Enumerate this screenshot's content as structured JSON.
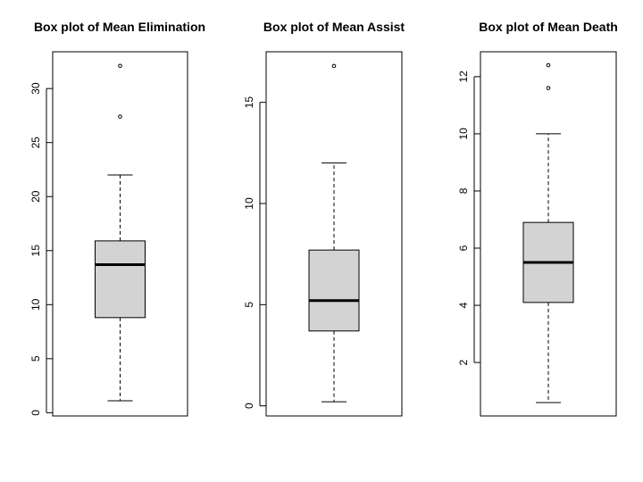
{
  "chart_data": [
    {
      "type": "box",
      "title": "Box plot of Mean Elimination",
      "xlabel": "",
      "ylabel": "",
      "ylim": [
        -0.3,
        33.4
      ],
      "yticks": [
        0,
        5,
        10,
        15,
        20,
        25,
        30
      ],
      "box": {
        "whisker_low": 1.1,
        "q1": 8.8,
        "median": 13.7,
        "q3": 15.9,
        "whisker_high": 22.0
      },
      "outliers": [
        27.4,
        32.1
      ],
      "box_color": "#d3d3d3"
    },
    {
      "type": "box",
      "title": "Box plot of Mean Assist",
      "xlabel": "",
      "ylabel": "",
      "ylim": [
        -0.5,
        17.5
      ],
      "yticks": [
        0,
        5,
        10,
        15
      ],
      "box": {
        "whisker_low": 0.2,
        "q1": 3.7,
        "median": 5.2,
        "q3": 7.7,
        "whisker_high": 12.0
      },
      "outliers": [
        16.8
      ],
      "box_color": "#d3d3d3"
    },
    {
      "type": "box",
      "title": "Box plot of Mean Death",
      "xlabel": "",
      "ylabel": "",
      "ylim": [
        0.13,
        12.87
      ],
      "yticks": [
        2,
        4,
        6,
        8,
        10,
        12
      ],
      "box": {
        "whisker_low": 0.6,
        "q1": 4.1,
        "median": 5.5,
        "q3": 6.9,
        "whisker_high": 10.0
      },
      "outliers": [
        11.6,
        12.4
      ],
      "box_color": "#d3d3d3"
    }
  ]
}
